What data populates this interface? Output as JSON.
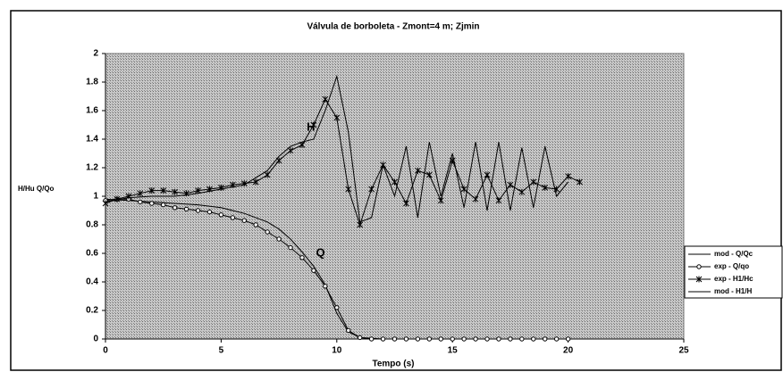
{
  "chart_data": {
    "type": "line",
    "title": "Válvula de borboleta - Zmont=4 m; Zjmin",
    "x_label": "Tempo (s)",
    "y_label": "H/Hu Q/Qo",
    "annotations": [
      "H",
      "Q"
    ],
    "xlim": [
      0,
      25
    ],
    "xticks": [
      0,
      5,
      10,
      15,
      20,
      25
    ],
    "ylim": [
      0,
      2
    ],
    "yticks": [
      0,
      0.2,
      0.4,
      0.6,
      0.8,
      1,
      1.2,
      1.4,
      1.6,
      1.8,
      2
    ],
    "series": [
      {
        "name": "mod - Q/Qc",
        "color": "#000000",
        "marker": "none",
        "x": [
          0,
          1,
          2,
          3,
          4,
          5,
          6,
          7,
          7.5,
          8,
          8.5,
          9,
          9.5,
          10,
          10.5,
          11,
          12,
          15,
          20
        ],
        "values": [
          0.98,
          0.97,
          0.96,
          0.95,
          0.94,
          0.92,
          0.88,
          0.82,
          0.77,
          0.7,
          0.61,
          0.51,
          0.38,
          0.18,
          0.05,
          0.01,
          0,
          0,
          0
        ]
      },
      {
        "name": "exp - Q/qo",
        "color": "#000000",
        "marker": "circle",
        "x": [
          0,
          0.5,
          1,
          1.5,
          2,
          2.5,
          3,
          3.5,
          4,
          4.5,
          5,
          5.5,
          6,
          6.5,
          7,
          7.5,
          8,
          8.5,
          9,
          9.5,
          10,
          10.5,
          11,
          11.5,
          12,
          12.5,
          13,
          13.5,
          14,
          14.5,
          15,
          15.5,
          16,
          16.5,
          17,
          17.5,
          18,
          18.5,
          19,
          19.5,
          20
        ],
        "values": [
          0.97,
          0.98,
          0.98,
          0.96,
          0.95,
          0.94,
          0.92,
          0.91,
          0.9,
          0.89,
          0.87,
          0.85,
          0.83,
          0.8,
          0.75,
          0.7,
          0.64,
          0.57,
          0.48,
          0.37,
          0.22,
          0.06,
          0.01,
          0,
          0,
          0,
          0,
          0,
          0,
          0,
          0,
          0,
          0,
          0,
          0,
          0,
          0,
          0,
          0,
          0,
          0
        ]
      },
      {
        "name": "exp - H1/Hc",
        "color": "#000000",
        "marker": "star",
        "x": [
          0,
          0.5,
          1,
          1.5,
          2,
          2.5,
          3,
          3.5,
          4,
          4.5,
          5,
          5.5,
          6,
          6.5,
          7,
          7.5,
          8,
          8.5,
          9,
          9.5,
          10,
          10.5,
          11,
          11.5,
          12,
          12.5,
          13,
          13.5,
          14,
          14.5,
          15,
          15.5,
          16,
          16.5,
          17,
          17.5,
          18,
          18.5,
          19,
          19.5,
          20,
          20.5
        ],
        "values": [
          0.95,
          0.98,
          1.0,
          1.02,
          1.04,
          1.04,
          1.03,
          1.02,
          1.04,
          1.05,
          1.06,
          1.08,
          1.09,
          1.1,
          1.15,
          1.25,
          1.32,
          1.36,
          1.5,
          1.68,
          1.55,
          1.05,
          0.8,
          1.05,
          1.22,
          1.1,
          0.95,
          1.18,
          1.15,
          0.97,
          1.25,
          1.05,
          0.98,
          1.15,
          0.97,
          1.08,
          1.03,
          1.1,
          1.06,
          1.05,
          1.14,
          1.1
        ]
      },
      {
        "name": "mod - H1/H",
        "color": "#000000",
        "marker": "none",
        "x": [
          0,
          1,
          2,
          3,
          4,
          5,
          6,
          7,
          7.5,
          8,
          8.5,
          9,
          9.5,
          10,
          10.5,
          11,
          11.5,
          12,
          12.5,
          13,
          13.5,
          14,
          14.5,
          15,
          15.5,
          16,
          16.5,
          17,
          17.5,
          18,
          18.5,
          19,
          19.5,
          20
        ],
        "values": [
          0.96,
          0.99,
          1.0,
          1.0,
          1.02,
          1.05,
          1.08,
          1.18,
          1.28,
          1.35,
          1.38,
          1.4,
          1.6,
          1.84,
          1.45,
          0.82,
          0.85,
          1.22,
          1.0,
          1.35,
          0.85,
          1.38,
          1.0,
          1.3,
          0.92,
          1.38,
          0.9,
          1.38,
          0.9,
          1.34,
          0.92,
          1.35,
          1.0,
          1.1
        ]
      }
    ]
  }
}
